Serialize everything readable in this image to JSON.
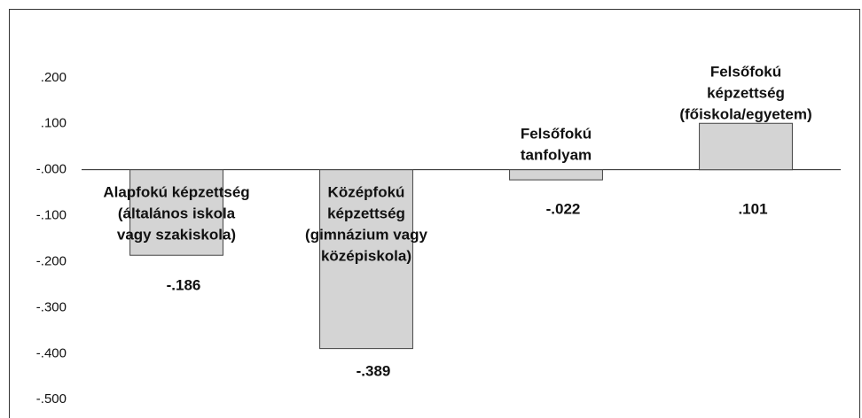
{
  "chart_data": {
    "type": "bar",
    "categories": [
      [
        "Alapfokú képzettség",
        "(általános iskola",
        "vagy szakiskola)"
      ],
      [
        "Középfokú",
        "képzettség",
        "(gimnázium vagy",
        "középiskola)"
      ],
      [
        "Felsőfokú",
        "tanfolyam"
      ],
      [
        "Felsőfokú",
        "képzettség",
        "(főiskola/egyetem)"
      ]
    ],
    "values": [
      -0.186,
      -0.389,
      -0.022,
      0.101
    ],
    "value_labels": [
      "-.186",
      "-.389",
      "-.022",
      ".101"
    ],
    "color": "#d4d4d4",
    "ylim": [
      -0.54,
      0.35
    ],
    "yticks": [
      {
        "value": 0.2,
        "label": ".200"
      },
      {
        "value": 0.1,
        "label": ".100"
      },
      {
        "value": 0,
        "label": "-.000"
      },
      {
        "value": -0.1,
        "label": "-.100"
      },
      {
        "value": -0.2,
        "label": "-.200"
      },
      {
        "value": -0.3,
        "label": "-.300"
      },
      {
        "value": -0.4,
        "label": "-.400"
      },
      {
        "value": -0.5,
        "label": "-.500"
      }
    ]
  }
}
